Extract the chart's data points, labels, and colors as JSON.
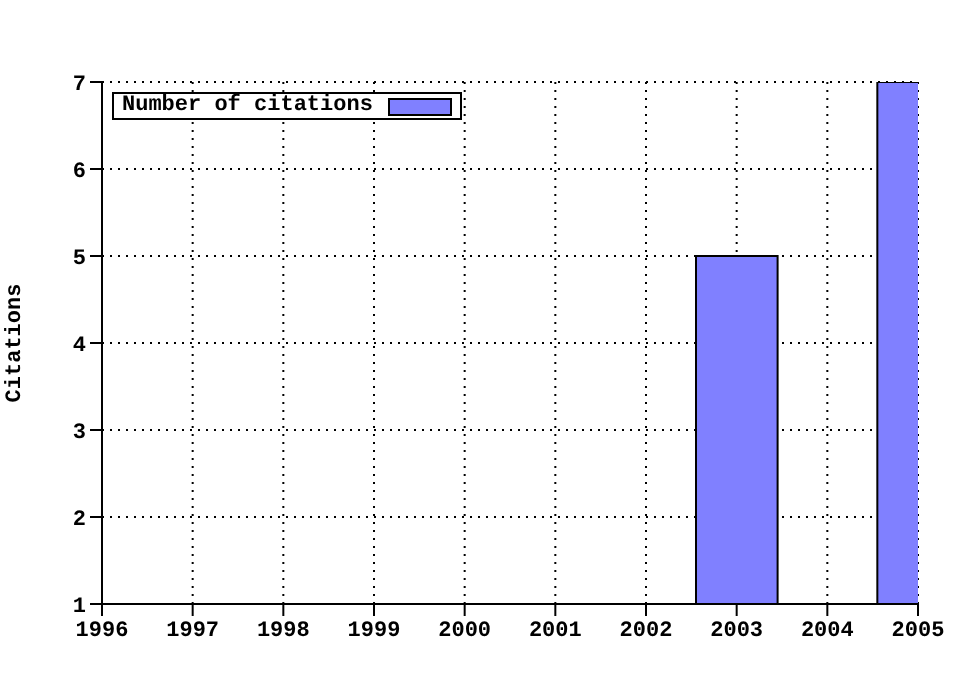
{
  "chart_data": {
    "type": "bar",
    "ylabel": "Citations",
    "x": [
      2003,
      2005
    ],
    "series": [
      {
        "name": "Number of citations",
        "color": "#8080ff",
        "values": [
          5,
          7
        ]
      }
    ],
    "xlim": [
      1996,
      2005
    ],
    "xticks": [
      1996,
      1997,
      1998,
      1999,
      2000,
      2001,
      2002,
      2003,
      2004,
      2005
    ],
    "ylim": [
      1,
      7
    ],
    "yticks": [
      1,
      2,
      3,
      4,
      5,
      6,
      7
    ],
    "grid": true,
    "legend": "top left"
  }
}
